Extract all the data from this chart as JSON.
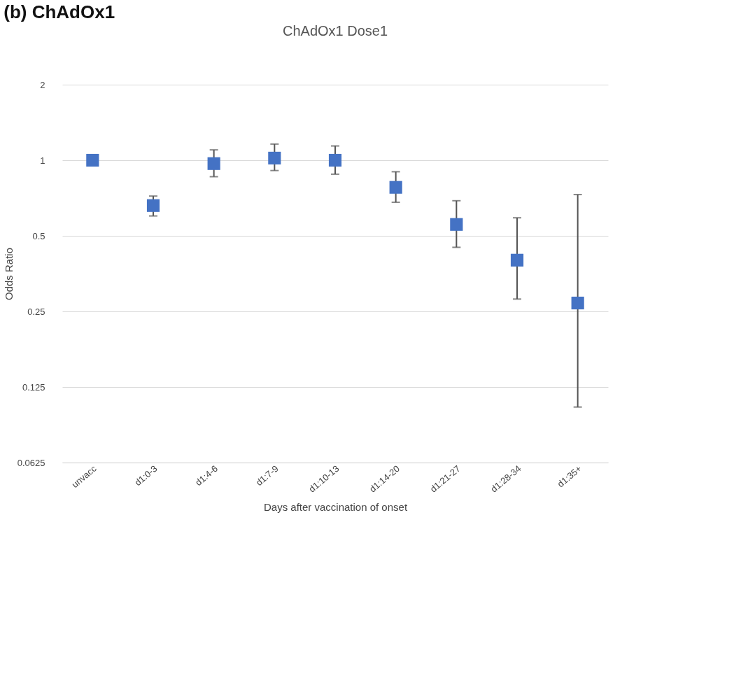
{
  "chart_data": {
    "type": "scatter",
    "title": "(b) ChAdOx1",
    "subtitle": "ChAdOx1 Dose1",
    "xlabel": "Days after vaccination of onset",
    "ylabel": "Odds Ratio",
    "categories": [
      "unvacc",
      "d1:0-3",
      "d1:4-6",
      "d1:7-9",
      "d1:10-13",
      "d1:14-20",
      "d1:21-27",
      "d1:28-34",
      "d1:35+"
    ],
    "series": [
      {
        "color": "#4472c4",
        "values": [
          1.0,
          0.66,
          0.97,
          1.02,
          1.0,
          0.78,
          0.555,
          0.4,
          0.27
        ],
        "errors": [
          null,
          [
            0.6,
            0.72
          ],
          [
            0.86,
            1.1
          ],
          [
            0.91,
            1.16
          ],
          [
            0.88,
            1.14
          ],
          [
            0.68,
            0.9
          ],
          [
            0.45,
            0.69
          ],
          [
            0.28,
            0.59
          ],
          [
            0.104,
            0.73
          ]
        ]
      }
    ],
    "log": "y",
    "ylim": [
      0.0625,
      2
    ],
    "yticks": [
      0.0625,
      0.125,
      0.25,
      0.5,
      1,
      2
    ],
    "grid": "y",
    "marker": "square"
  }
}
